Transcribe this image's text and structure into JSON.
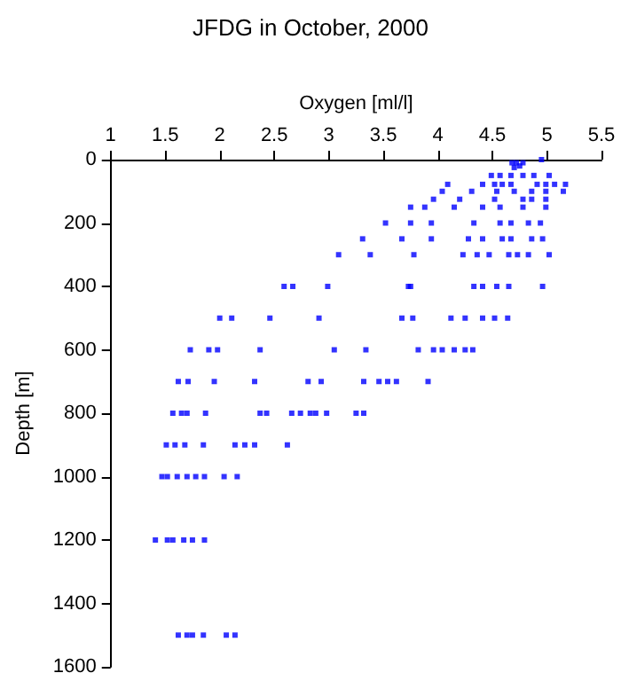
{
  "chart_data": {
    "type": "scatter",
    "title": "JFDG in October, 2000",
    "xlabel": "Oxygen [ml/l]",
    "ylabel": "Depth [m]",
    "xlim": [
      1,
      5.5
    ],
    "xticks": [
      1,
      1.5,
      2,
      2.5,
      3,
      3.5,
      4,
      4.5,
      5,
      5.5
    ],
    "ylim": [
      1600,
      0
    ],
    "yticks": [
      0,
      200,
      400,
      600,
      800,
      1000,
      1200,
      1400,
      1600
    ],
    "marker": "square",
    "series": [
      {
        "color": "#0000ff",
        "x": [
          4.68,
          4.72,
          4.75,
          4.78,
          4.95,
          4.7,
          4.49,
          4.57,
          4.67,
          4.78,
          4.88,
          5.02,
          4.09,
          4.41,
          4.52,
          4.59,
          4.67,
          4.91,
          4.99,
          5.07,
          5.17,
          4.04,
          4.31,
          4.54,
          4.7,
          4.86,
          4.99,
          5.15,
          3.96,
          4.2,
          4.52,
          4.78,
          4.86,
          4.99,
          3.75,
          3.88,
          4.15,
          4.41,
          4.57,
          4.78,
          4.99,
          3.52,
          3.75,
          3.94,
          4.33,
          4.57,
          4.67,
          4.83,
          4.94,
          3.31,
          3.67,
          3.94,
          4.28,
          4.41,
          4.59,
          4.67,
          4.86,
          4.96,
          3.09,
          3.38,
          3.78,
          4.23,
          4.36,
          4.47,
          4.65,
          4.73,
          4.83,
          5.02,
          2.59,
          2.67,
          2.99,
          3.73,
          3.75,
          4.33,
          4.41,
          4.54,
          4.65,
          4.96,
          2.0,
          2.11,
          2.46,
          2.91,
          3.67,
          3.77,
          4.12,
          4.25,
          4.41,
          4.52,
          4.64,
          1.73,
          1.9,
          1.98,
          2.37,
          3.05,
          3.34,
          3.82,
          3.96,
          4.04,
          4.15,
          4.25,
          4.32,
          1.62,
          1.71,
          1.95,
          2.32,
          2.81,
          2.93,
          3.32,
          3.46,
          3.54,
          3.62,
          3.91,
          1.57,
          1.65,
          1.7,
          1.87,
          2.37,
          2.43,
          2.66,
          2.74,
          2.83,
          2.88,
          2.98,
          3.25,
          3.32,
          1.51,
          1.59,
          1.68,
          1.85,
          2.14,
          2.23,
          2.32,
          2.62,
          1.47,
          1.52,
          1.61,
          1.7,
          1.78,
          1.86,
          2.04,
          2.16,
          1.41,
          1.52,
          1.57,
          1.67,
          1.75,
          1.86,
          1.62,
          1.7,
          1.75,
          1.85,
          2.06,
          2.14
        ],
        "values": [
          10,
          10,
          20,
          10,
          0,
          25,
          50,
          50,
          50,
          50,
          50,
          50,
          78,
          78,
          78,
          78,
          78,
          78,
          78,
          78,
          78,
          100,
          100,
          100,
          100,
          100,
          100,
          100,
          125,
          125,
          125,
          125,
          125,
          125,
          150,
          150,
          150,
          150,
          150,
          150,
          150,
          200,
          200,
          200,
          200,
          200,
          200,
          200,
          200,
          250,
          250,
          250,
          250,
          250,
          250,
          250,
          250,
          250,
          300,
          300,
          300,
          300,
          300,
          300,
          300,
          300,
          300,
          300,
          400,
          400,
          400,
          400,
          400,
          400,
          400,
          400,
          400,
          400,
          500,
          500,
          500,
          500,
          500,
          500,
          500,
          500,
          500,
          500,
          500,
          600,
          600,
          600,
          600,
          600,
          600,
          600,
          600,
          600,
          600,
          600,
          600,
          700,
          700,
          700,
          700,
          700,
          700,
          700,
          700,
          700,
          700,
          700,
          800,
          800,
          800,
          800,
          800,
          800,
          800,
          800,
          800,
          800,
          800,
          800,
          800,
          900,
          900,
          900,
          900,
          900,
          900,
          900,
          900,
          1000,
          1000,
          1000,
          1000,
          1000,
          1000,
          1000,
          1000,
          1200,
          1200,
          1200,
          1200,
          1200,
          1200,
          1500,
          1500,
          1500,
          1500,
          1500,
          1500
        ]
      }
    ]
  }
}
